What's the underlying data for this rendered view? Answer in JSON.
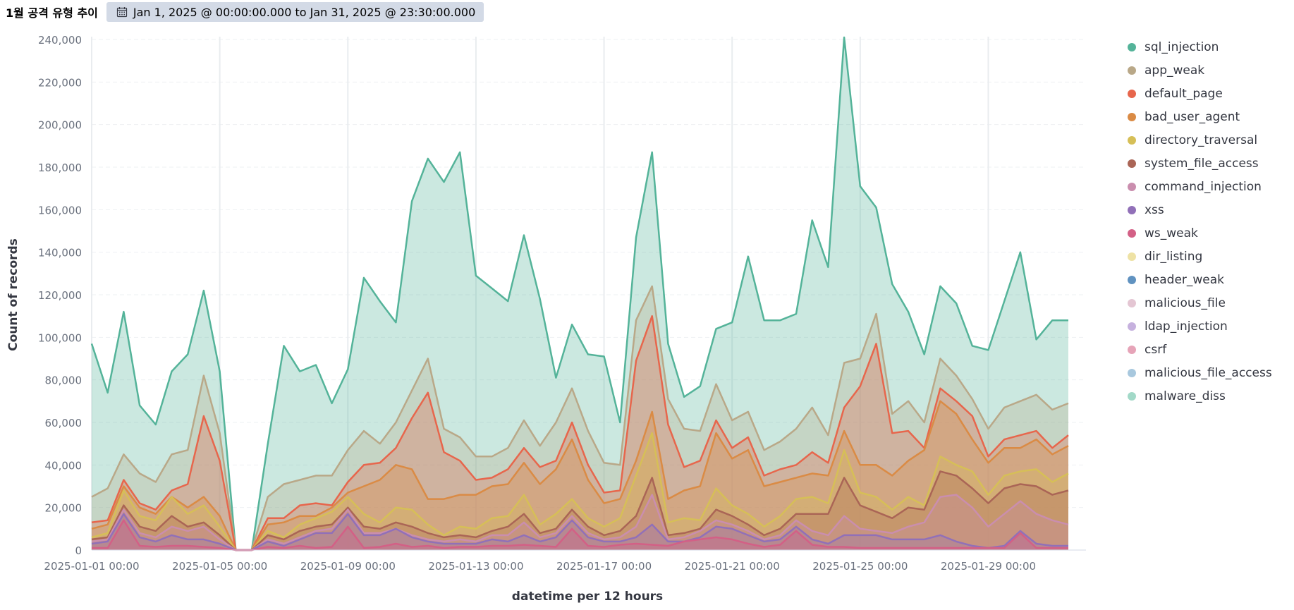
{
  "panel": {
    "title": "1월 공격 유형 추이",
    "time_range": "Jan 1, 2025 @ 00:00:00.000 to Jan 31, 2025 @ 23:30:00.000",
    "calendar_icon": "calendar-icon"
  },
  "chart_data": {
    "type": "area",
    "stacked": true,
    "xlabel": "datetime per 12 hours",
    "ylabel": "Count of records",
    "ylim": [
      0,
      240000
    ],
    "yticks": [
      0,
      20000,
      40000,
      60000,
      80000,
      100000,
      120000,
      140000,
      160000,
      180000,
      200000,
      220000,
      240000
    ],
    "ytick_labels": [
      "0",
      "20,000",
      "40,000",
      "60,000",
      "80,000",
      "100,000",
      "120,000",
      "140,000",
      "160,000",
      "180,000",
      "200,000",
      "220,000",
      "240,000"
    ],
    "xtick_labels": [
      "2025-01-01 00:00",
      "2025-01-05 00:00",
      "2025-01-09 00:00",
      "2025-01-13 00:00",
      "2025-01-17 00:00",
      "2025-01-21 00:00",
      "2025-01-25 00:00",
      "2025-01-29 00:00"
    ],
    "x_start": "2025-01-01 00:00",
    "interval_hours": 12,
    "grid": true,
    "legend_position": "right",
    "series_totals": [
      {
        "name": "sql_injection",
        "color": "#54b399",
        "cumulative": [
          97000,
          74000,
          112000,
          68000,
          59000,
          84000,
          92000,
          122000,
          84000,
          0,
          0,
          50000,
          96000,
          84000,
          87000,
          69000,
          85000,
          128000,
          117000,
          107000,
          164000,
          184000,
          173000,
          187000,
          129000,
          123000,
          117000,
          148000,
          118000,
          81000,
          106000,
          92000,
          91000,
          60000,
          147000,
          187000,
          97000,
          72000,
          77000,
          104000,
          107000,
          138000,
          108000,
          108000,
          111000,
          155000,
          133000,
          241000,
          171000,
          161000,
          125000,
          112000,
          92000,
          124000,
          116000,
          96000,
          94000,
          117000,
          140000,
          99000,
          108000,
          108000
        ]
      },
      {
        "name": "app_weak",
        "color": "#b9a888",
        "cumulative": [
          25000,
          29000,
          45000,
          36000,
          32000,
          45000,
          47000,
          82000,
          55000,
          0,
          0,
          25000,
          31000,
          33000,
          35000,
          35000,
          47000,
          56000,
          50000,
          60000,
          75000,
          90000,
          57000,
          53000,
          44000,
          44000,
          48000,
          61000,
          49000,
          60000,
          76000,
          56000,
          41000,
          40000,
          108000,
          124000,
          71000,
          57000,
          56000,
          78000,
          61000,
          65000,
          47000,
          51000,
          57000,
          67000,
          54000,
          88000,
          90000,
          111000,
          64000,
          70000,
          60000,
          90000,
          82000,
          71000,
          57000,
          67000,
          70000,
          73000,
          66000,
          69000
        ]
      },
      {
        "name": "default_page",
        "color": "#e7664c",
        "cumulative": [
          13000,
          14000,
          33000,
          22000,
          19000,
          28000,
          31000,
          63000,
          42000,
          0,
          0,
          15000,
          15000,
          21000,
          22000,
          21000,
          32000,
          40000,
          41000,
          48000,
          62000,
          74000,
          46000,
          42000,
          33000,
          34000,
          38000,
          48000,
          39000,
          42000,
          60000,
          40000,
          27000,
          28000,
          89000,
          110000,
          59000,
          39000,
          42000,
          61000,
          48000,
          53000,
          35000,
          38000,
          40000,
          46000,
          41000,
          67000,
          77000,
          97000,
          55000,
          56000,
          48000,
          76000,
          70000,
          63000,
          44000,
          52000,
          54000,
          56000,
          48000,
          54000
        ]
      },
      {
        "name": "bad_user_agent",
        "color": "#da8b45",
        "cumulative": [
          10000,
          12000,
          30000,
          20000,
          17000,
          25000,
          20000,
          25000,
          16000,
          0,
          0,
          12000,
          13000,
          16000,
          16000,
          20000,
          27000,
          30000,
          33000,
          40000,
          38000,
          24000,
          24000,
          26000,
          26000,
          30000,
          31000,
          41000,
          31000,
          38000,
          52000,
          33000,
          22000,
          24000,
          42000,
          65000,
          24000,
          28000,
          30000,
          55000,
          43000,
          47000,
          30000,
          32000,
          34000,
          36000,
          35000,
          56000,
          40000,
          40000,
          35000,
          42000,
          47000,
          70000,
          64000,
          52000,
          41000,
          48000,
          48000,
          52000,
          45000,
          49000
        ]
      },
      {
        "name": "directory_traversal",
        "color": "#d6bf57",
        "cumulative": [
          6000,
          8000,
          28000,
          16000,
          14000,
          25000,
          17000,
          21000,
          11000,
          0,
          0,
          9000,
          6000,
          12000,
          15000,
          18000,
          25000,
          17000,
          13000,
          20000,
          19000,
          12000,
          7000,
          11000,
          10000,
          15000,
          16000,
          26000,
          12000,
          17000,
          24000,
          15000,
          11000,
          15000,
          35000,
          55000,
          13000,
          15000,
          14000,
          29000,
          21000,
          17000,
          11000,
          16000,
          24000,
          25000,
          22000,
          47000,
          27000,
          25000,
          19000,
          25000,
          21000,
          44000,
          40000,
          37000,
          26000,
          35000,
          37000,
          38000,
          32000,
          36000
        ]
      },
      {
        "name": "system_file_access",
        "color": "#aa6556",
        "cumulative": [
          5000,
          6000,
          21000,
          11000,
          9000,
          16000,
          11000,
          13000,
          7000,
          0,
          0,
          7000,
          5000,
          9000,
          11000,
          12000,
          20000,
          11000,
          10000,
          13000,
          11000,
          8000,
          6000,
          7000,
          6000,
          9000,
          11000,
          17000,
          8000,
          10000,
          19000,
          11000,
          7000,
          9000,
          16000,
          34000,
          7000,
          8000,
          10000,
          19000,
          16000,
          12000,
          7000,
          10000,
          17000,
          17000,
          17000,
          34000,
          21000,
          18000,
          15000,
          20000,
          19000,
          37000,
          35000,
          29000,
          22000,
          29000,
          31000,
          30000,
          26000,
          28000
        ]
      },
      {
        "name": "command_injection",
        "color": "#ca8eae",
        "cumulative": [
          4000,
          5000,
          19000,
          8000,
          6000,
          11000,
          9000,
          11000,
          5000,
          0,
          0,
          5000,
          3000,
          6000,
          9000,
          10000,
          19000,
          8000,
          8000,
          10000,
          7000,
          5000,
          4000,
          5000,
          4000,
          7000,
          7000,
          13000,
          6000,
          8000,
          16000,
          8000,
          5000,
          6000,
          11000,
          26000,
          5000,
          6000,
          9000,
          14000,
          12000,
          9000,
          5000,
          7000,
          14000,
          9000,
          7000,
          16000,
          10000,
          9000,
          8000,
          11000,
          13000,
          25000,
          26000,
          20000,
          11000,
          17000,
          23000,
          17000,
          14000,
          12000
        ]
      },
      {
        "name": "xss",
        "color": "#9170b8",
        "cumulative": [
          3000,
          4000,
          17000,
          6000,
          4000,
          7000,
          5000,
          5000,
          3000,
          0,
          0,
          4000,
          2000,
          5000,
          8000,
          8000,
          17000,
          7000,
          7000,
          10000,
          6000,
          4000,
          3000,
          3000,
          3000,
          5000,
          4000,
          7000,
          4000,
          6000,
          14000,
          6000,
          4000,
          4000,
          6000,
          12000,
          4000,
          4000,
          6000,
          11000,
          10000,
          7000,
          4000,
          5000,
          11000,
          5000,
          3000,
          7000,
          7000,
          7000,
          5000,
          5000,
          5000,
          7000,
          4000,
          2000,
          1000,
          2000,
          9000,
          3000,
          2000,
          2000
        ]
      },
      {
        "name": "ws_weak",
        "color": "#d36086",
        "cumulative": [
          1000,
          1000,
          14000,
          2000,
          1500,
          2000,
          2000,
          1500,
          1000,
          0,
          0,
          1500,
          1000,
          2000,
          1000,
          1500,
          11000,
          1000,
          1500,
          3000,
          1500,
          2000,
          1000,
          1500,
          1500,
          2000,
          2000,
          2500,
          2000,
          1500,
          10000,
          2000,
          1500,
          2500,
          3000,
          2500,
          2000,
          4000,
          5000,
          6000,
          5000,
          3000,
          1500,
          2500,
          9000,
          2500,
          1500,
          1500,
          1000,
          1000,
          1000,
          1000,
          1000,
          1000,
          1000,
          1000,
          1000,
          1000,
          8000,
          1000,
          1000,
          1000
        ]
      },
      {
        "name": "dir_listing",
        "color": "#eee2a5",
        "cumulative": []
      },
      {
        "name": "header_weak",
        "color": "#6092c0",
        "cumulative": []
      },
      {
        "name": "malicious_file",
        "color": "#e4c6d3",
        "cumulative": []
      },
      {
        "name": "ldap_injection",
        "color": "#c6b1de",
        "cumulative": []
      },
      {
        "name": "csrf",
        "color": "#e6a4b8",
        "cumulative": []
      },
      {
        "name": "malicious_file_access",
        "color": "#a8c8de",
        "cumulative": []
      },
      {
        "name": "malware_diss",
        "color": "#a2d9c8",
        "cumulative": []
      }
    ]
  }
}
